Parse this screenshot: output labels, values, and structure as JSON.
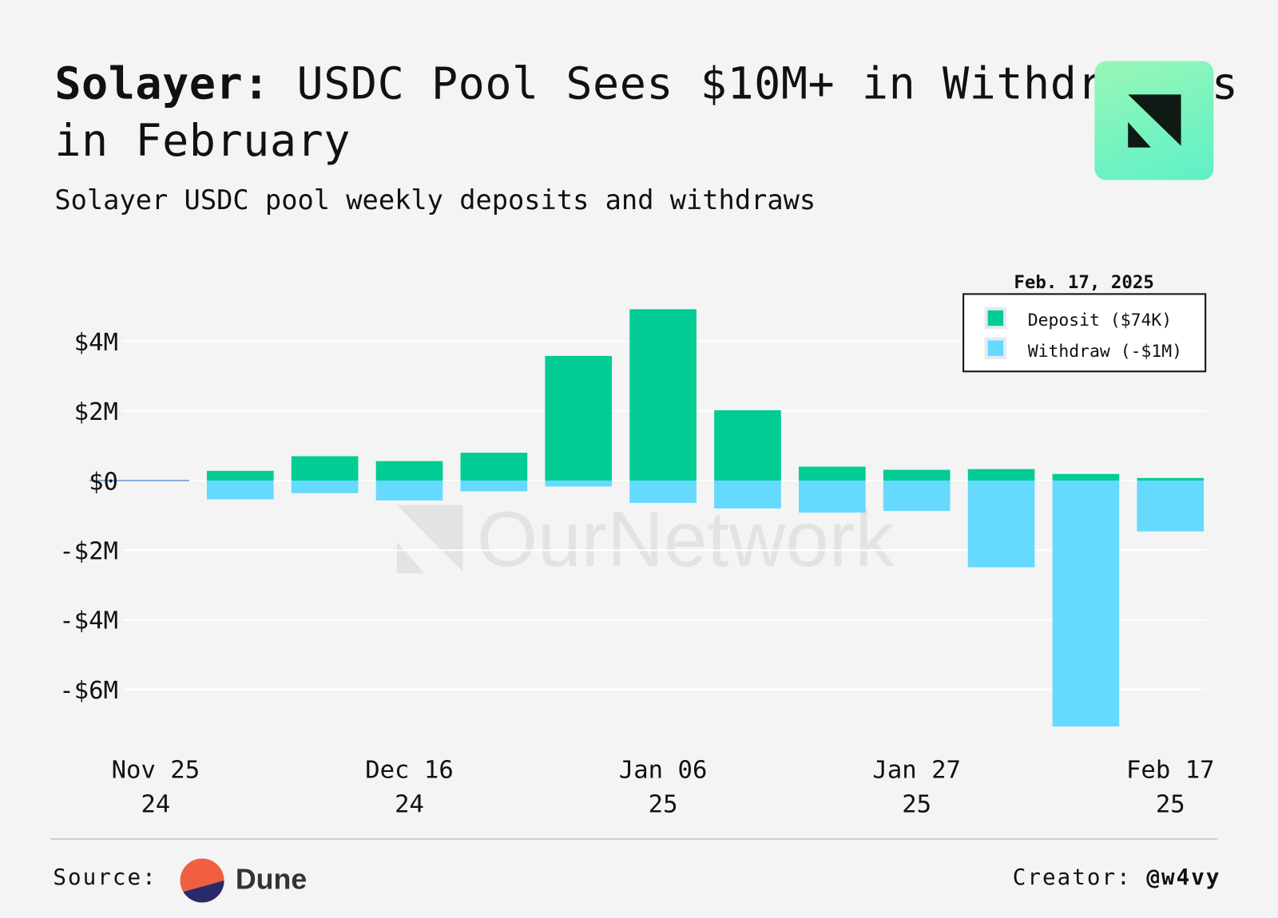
{
  "header": {
    "title_bold": "Solayer:",
    "title_rest": " USDC Pool Sees $10M+ in Withdrawals in February",
    "subtitle": "Solayer USDC pool weekly deposits and withdraws"
  },
  "watermark": "OurNetwork",
  "footer": {
    "source_label": "Source:",
    "source_name": "Dune",
    "creator_label": "Creator:",
    "creator_handle": "@w4vy"
  },
  "colors": {
    "deposit": "#00cc94",
    "withdraw": "#66d9ff",
    "background": "#f4f4f4"
  },
  "chart_data": {
    "type": "bar",
    "stacked": true,
    "title": "Solayer USDC pool weekly deposits and withdraws",
    "categories": [
      "2024-11-25",
      "2024-12-02",
      "2024-12-09",
      "2024-12-16",
      "2024-12-23",
      "2024-12-30",
      "2025-01-06",
      "2025-01-13",
      "2025-01-20",
      "2025-01-27",
      "2025-02-03",
      "2025-02-10",
      "2025-02-17"
    ],
    "x_tick_labels": [
      {
        "index": 0,
        "line1": "Nov 25",
        "line2": "24"
      },
      {
        "index": 3,
        "line1": "Dec 16",
        "line2": "24"
      },
      {
        "index": 6,
        "line1": "Jan 06",
        "line2": "25"
      },
      {
        "index": 9,
        "line1": "Jan 27",
        "line2": "25"
      },
      {
        "index": 12,
        "line1": "Feb 17",
        "line2": "25"
      }
    ],
    "series": [
      {
        "name": "Deposit",
        "unit": "USD millions",
        "values": [
          0.0,
          0.28,
          0.7,
          0.56,
          0.8,
          3.58,
          4.92,
          2.02,
          0.4,
          0.31,
          0.33,
          0.19,
          0.074
        ]
      },
      {
        "name": "Withdraw",
        "unit": "USD millions",
        "values": [
          0.0,
          -0.54,
          -0.36,
          -0.57,
          -0.31,
          -0.17,
          -0.64,
          -0.8,
          -0.92,
          -0.87,
          -2.49,
          -7.06,
          -1.46
        ]
      }
    ],
    "y_ticks": [
      {
        "value": 4,
        "label": "$4M"
      },
      {
        "value": 2,
        "label": "$2M"
      },
      {
        "value": 0,
        "label": "$0"
      },
      {
        "value": -2,
        "label": "-$2M"
      },
      {
        "value": -4,
        "label": "-$4M"
      },
      {
        "value": -6,
        "label": "-$6M"
      }
    ],
    "ylim": [
      -7.5,
      5.2
    ],
    "grid": true,
    "legend": {
      "placement": "top-right",
      "title": "Feb. 17, 2025",
      "items": [
        {
          "label": "Deposit ($74K)",
          "series": "Deposit"
        },
        {
          "label": "Withdraw (-$1M)",
          "series": "Withdraw"
        }
      ]
    }
  }
}
